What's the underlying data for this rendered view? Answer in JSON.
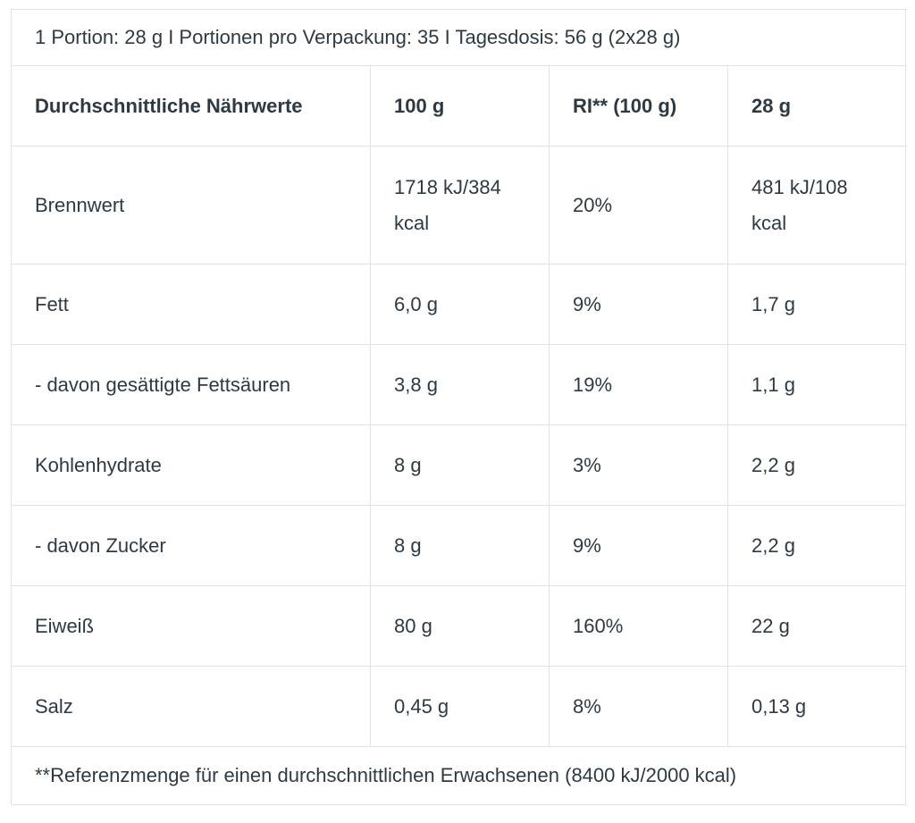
{
  "meta": {
    "text_color": "#2d3a44",
    "border_color": "#e2e2e2",
    "background_color": "#ffffff"
  },
  "table": {
    "portion_info": "1 Portion: 28 g I Portionen pro Verpackung: 35 I Tagesdosis: 56 g (2x28 g)",
    "columns": {
      "label": "Durchschnittliche Nährwerte",
      "per_100g": "100 g",
      "ri": "RI** (100 g)",
      "per_28g": "28 g"
    },
    "rows": [
      {
        "label": "Brennwert",
        "per_100g": "1718 kJ/384 kcal",
        "ri": "20%",
        "per_28g": "481 kJ/108 kcal"
      },
      {
        "label": "Fett",
        "per_100g": "6,0 g",
        "ri": "9%",
        "per_28g": "1,7 g"
      },
      {
        "label": "- davon gesättigte Fettsäuren",
        "per_100g": "3,8 g",
        "ri": "19%",
        "per_28g": "1,1 g"
      },
      {
        "label": "Kohlenhydrate",
        "per_100g": "8 g",
        "ri": "3%",
        "per_28g": "2,2 g"
      },
      {
        "label": "- davon Zucker",
        "per_100g": "8 g",
        "ri": "9%",
        "per_28g": "2,2 g"
      },
      {
        "label": "Eiweiß",
        "per_100g": "80 g",
        "ri": "160%",
        "per_28g": "22 g"
      },
      {
        "label": "Salz",
        "per_100g": "0,45 g",
        "ri": "8%",
        "per_28g": "0,13 g"
      }
    ],
    "footnote": "**Referenzmenge für einen durchschnittlichen Erwachsenen (8400 kJ/2000 kcal)"
  }
}
